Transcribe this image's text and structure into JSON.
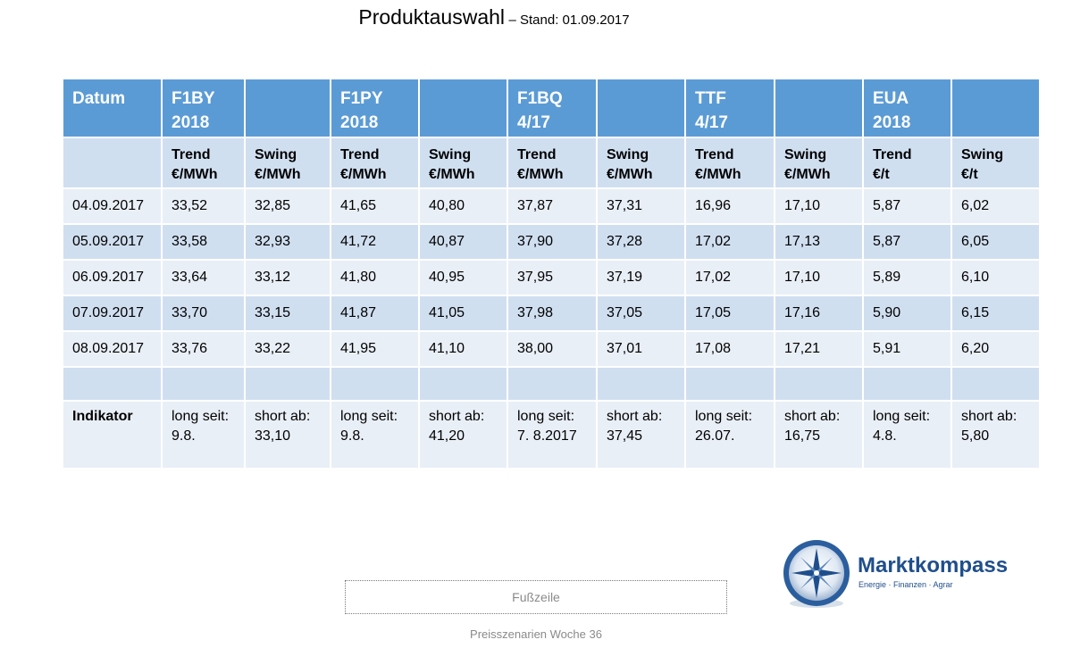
{
  "title": {
    "main": "Produktauswahl",
    "sub": "– Stand: 01.09.2017"
  },
  "table": {
    "header": [
      "Datum",
      "F1BY\n2018",
      "",
      "F1PY\n2018",
      "",
      "F1BQ\n4/17",
      "",
      "TTF\n4/17",
      "",
      "EUA\n2018",
      ""
    ],
    "subheader": [
      "",
      "Trend\n€/MWh",
      "Swing\n€/MWh",
      "Trend\n€/MWh",
      "Swing\n€/MWh",
      "Trend\n€/MWh",
      "Swing\n€/MWh",
      "Trend\n€/MWh",
      "Swing\n€/MWh",
      "Trend\n€/t",
      "Swing\n€/t"
    ],
    "rows": [
      [
        "04.09.2017",
        "33,52",
        "32,85",
        "41,65",
        "40,80",
        "37,87",
        "37,31",
        "16,96",
        "17,10",
        "5,87",
        "6,02"
      ],
      [
        "05.09.2017",
        "33,58",
        "32,93",
        "41,72",
        "40,87",
        "37,90",
        "37,28",
        "17,02",
        "17,13",
        "5,87",
        "6,05"
      ],
      [
        "06.09.2017",
        "33,64",
        "33,12",
        "41,80",
        "40,95",
        "37,95",
        "37,19",
        "17,02",
        "17,10",
        "5,89",
        "6,10"
      ],
      [
        "07.09.2017",
        "33,70",
        "33,15",
        "41,87",
        "41,05",
        "37,98",
        "37,05",
        "17,05",
        "17,16",
        "5,90",
        "6,15"
      ],
      [
        "08.09.2017",
        "33,76",
        "33,22",
        "41,95",
        "41,10",
        "38,00",
        "37,01",
        "17,08",
        "17,21",
        "5,91",
        "6,20"
      ]
    ],
    "indicator": [
      "Indikator",
      "long seit:\n9.8.",
      "short ab:\n33,10",
      "long seit:\n9.8.",
      "short ab:\n41,20",
      "long seit:\n7. 8.2017",
      "short ab:\n37,45",
      "long seit:\n26.07.",
      "short ab:\n16,75",
      "long seit:\n4.8.",
      "short ab:\n5,80"
    ]
  },
  "footer": {
    "placeholder": "Fußzeile",
    "week": "Preisszenarien Woche 36"
  },
  "logo": {
    "name": "Marktkompass",
    "tagline": "Energie · Finanzen · Agrar",
    "icon": "compass-rose-icon"
  },
  "colors": {
    "header": "#5b9bd5",
    "row_light": "#e9eff7",
    "row_dark": "#d0dff0",
    "brand": "#1f4e8c"
  }
}
